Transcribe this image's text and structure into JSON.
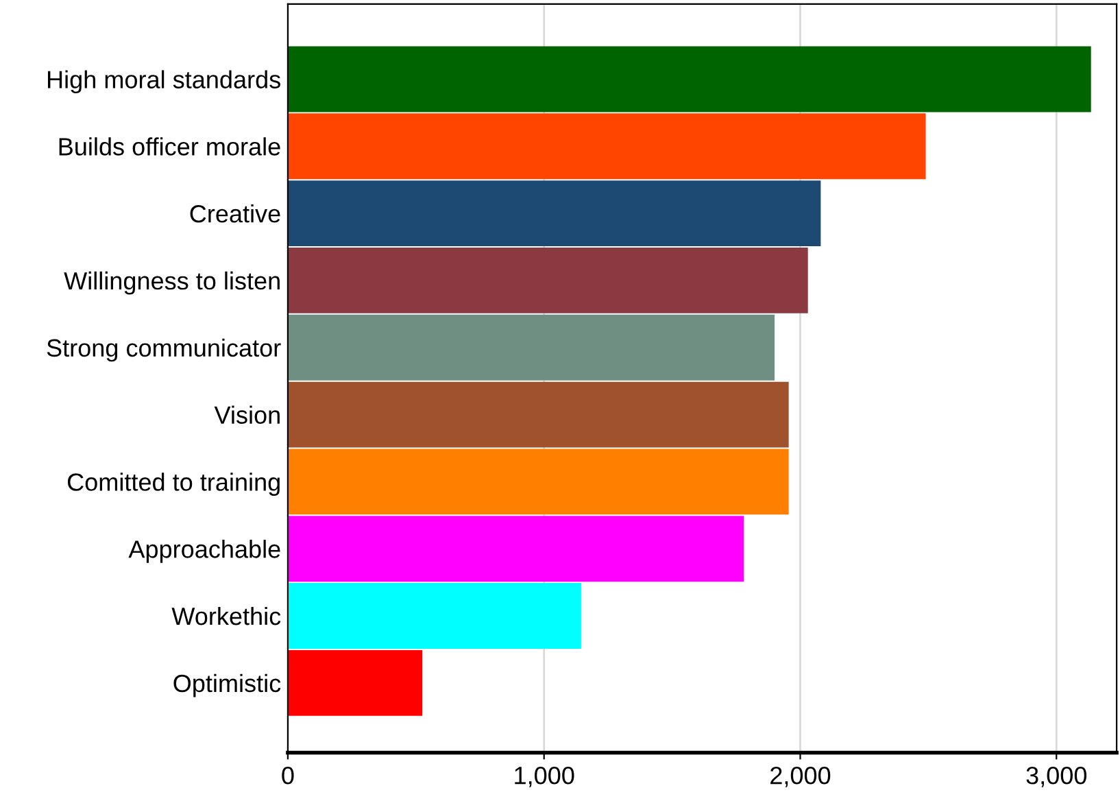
{
  "chart_data": {
    "type": "bar",
    "orientation": "horizontal",
    "categories": [
      "High moral standards",
      "Builds officer morale",
      "Creative",
      "Willingness to listen",
      "Strong communicator",
      "Vision",
      "Comitted to training",
      "Approachable",
      "Workethic",
      "Optimistic"
    ],
    "values": [
      3135,
      2490,
      2080,
      2030,
      1900,
      1955,
      1955,
      1780,
      1145,
      525
    ],
    "colors": [
      "#006400",
      "#ff4500",
      "#1c4a73",
      "#8b3a42",
      "#6f8f82",
      "#a0522d",
      "#ff8000",
      "#ff00ff",
      "#00ffff",
      "#ff0000"
    ],
    "xlim": [
      0,
      3235
    ],
    "xticks": [
      {
        "value": 0,
        "label": "0"
      },
      {
        "value": 1000,
        "label": "1,000"
      },
      {
        "value": 2000,
        "label": "2,000"
      },
      {
        "value": 3000,
        "label": "3,000"
      }
    ],
    "grid": "x",
    "legend": false
  }
}
